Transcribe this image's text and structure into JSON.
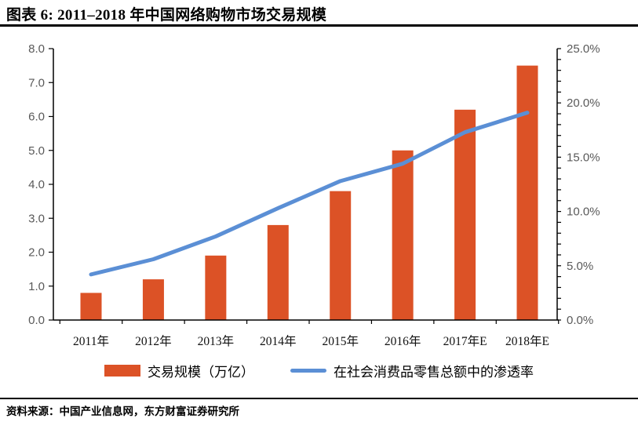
{
  "page": {
    "title": "图表 6: 2011–2018 年中国网络购物市场交易规模",
    "source": "资料来源：中国产业信息网，东方财富证券研究所"
  },
  "colors": {
    "bar": "#DC5226",
    "line": "#5B8FD5",
    "axis": "#000000",
    "tick_label": "#595959"
  },
  "chart_data": {
    "type": "combo",
    "title": "图表 6: 2011–2018 年中国网络购物市场交易规模",
    "categories": [
      "2011年",
      "2012年",
      "2013年",
      "2014年",
      "2015年",
      "2016年",
      "2017年E",
      "2018年E"
    ],
    "series": [
      {
        "name": "交易规模（万亿）",
        "type": "bar",
        "axis": "left",
        "values": [
          0.8,
          1.2,
          1.9,
          2.8,
          3.8,
          5.0,
          6.2,
          7.5
        ]
      },
      {
        "name": "在社会消费品零售总额中的渗透率",
        "type": "line",
        "axis": "right",
        "unit": "%",
        "values": [
          4.2,
          5.6,
          7.7,
          10.3,
          12.8,
          14.4,
          17.3,
          19.1
        ]
      }
    ],
    "left_axis": {
      "min": 0,
      "max": 8,
      "step": 1,
      "tick_labels": [
        "0.0",
        "1.0",
        "2.0",
        "3.0",
        "4.0",
        "5.0",
        "6.0",
        "7.0",
        "8.0"
      ]
    },
    "right_axis": {
      "min": 0,
      "max": 25,
      "step": 5,
      "minor_step": 1,
      "tick_labels": [
        "0.0%",
        "5.0%",
        "10.0%",
        "15.0%",
        "20.0%",
        "25.0%"
      ]
    },
    "legend_position": "bottom",
    "grid": false
  }
}
